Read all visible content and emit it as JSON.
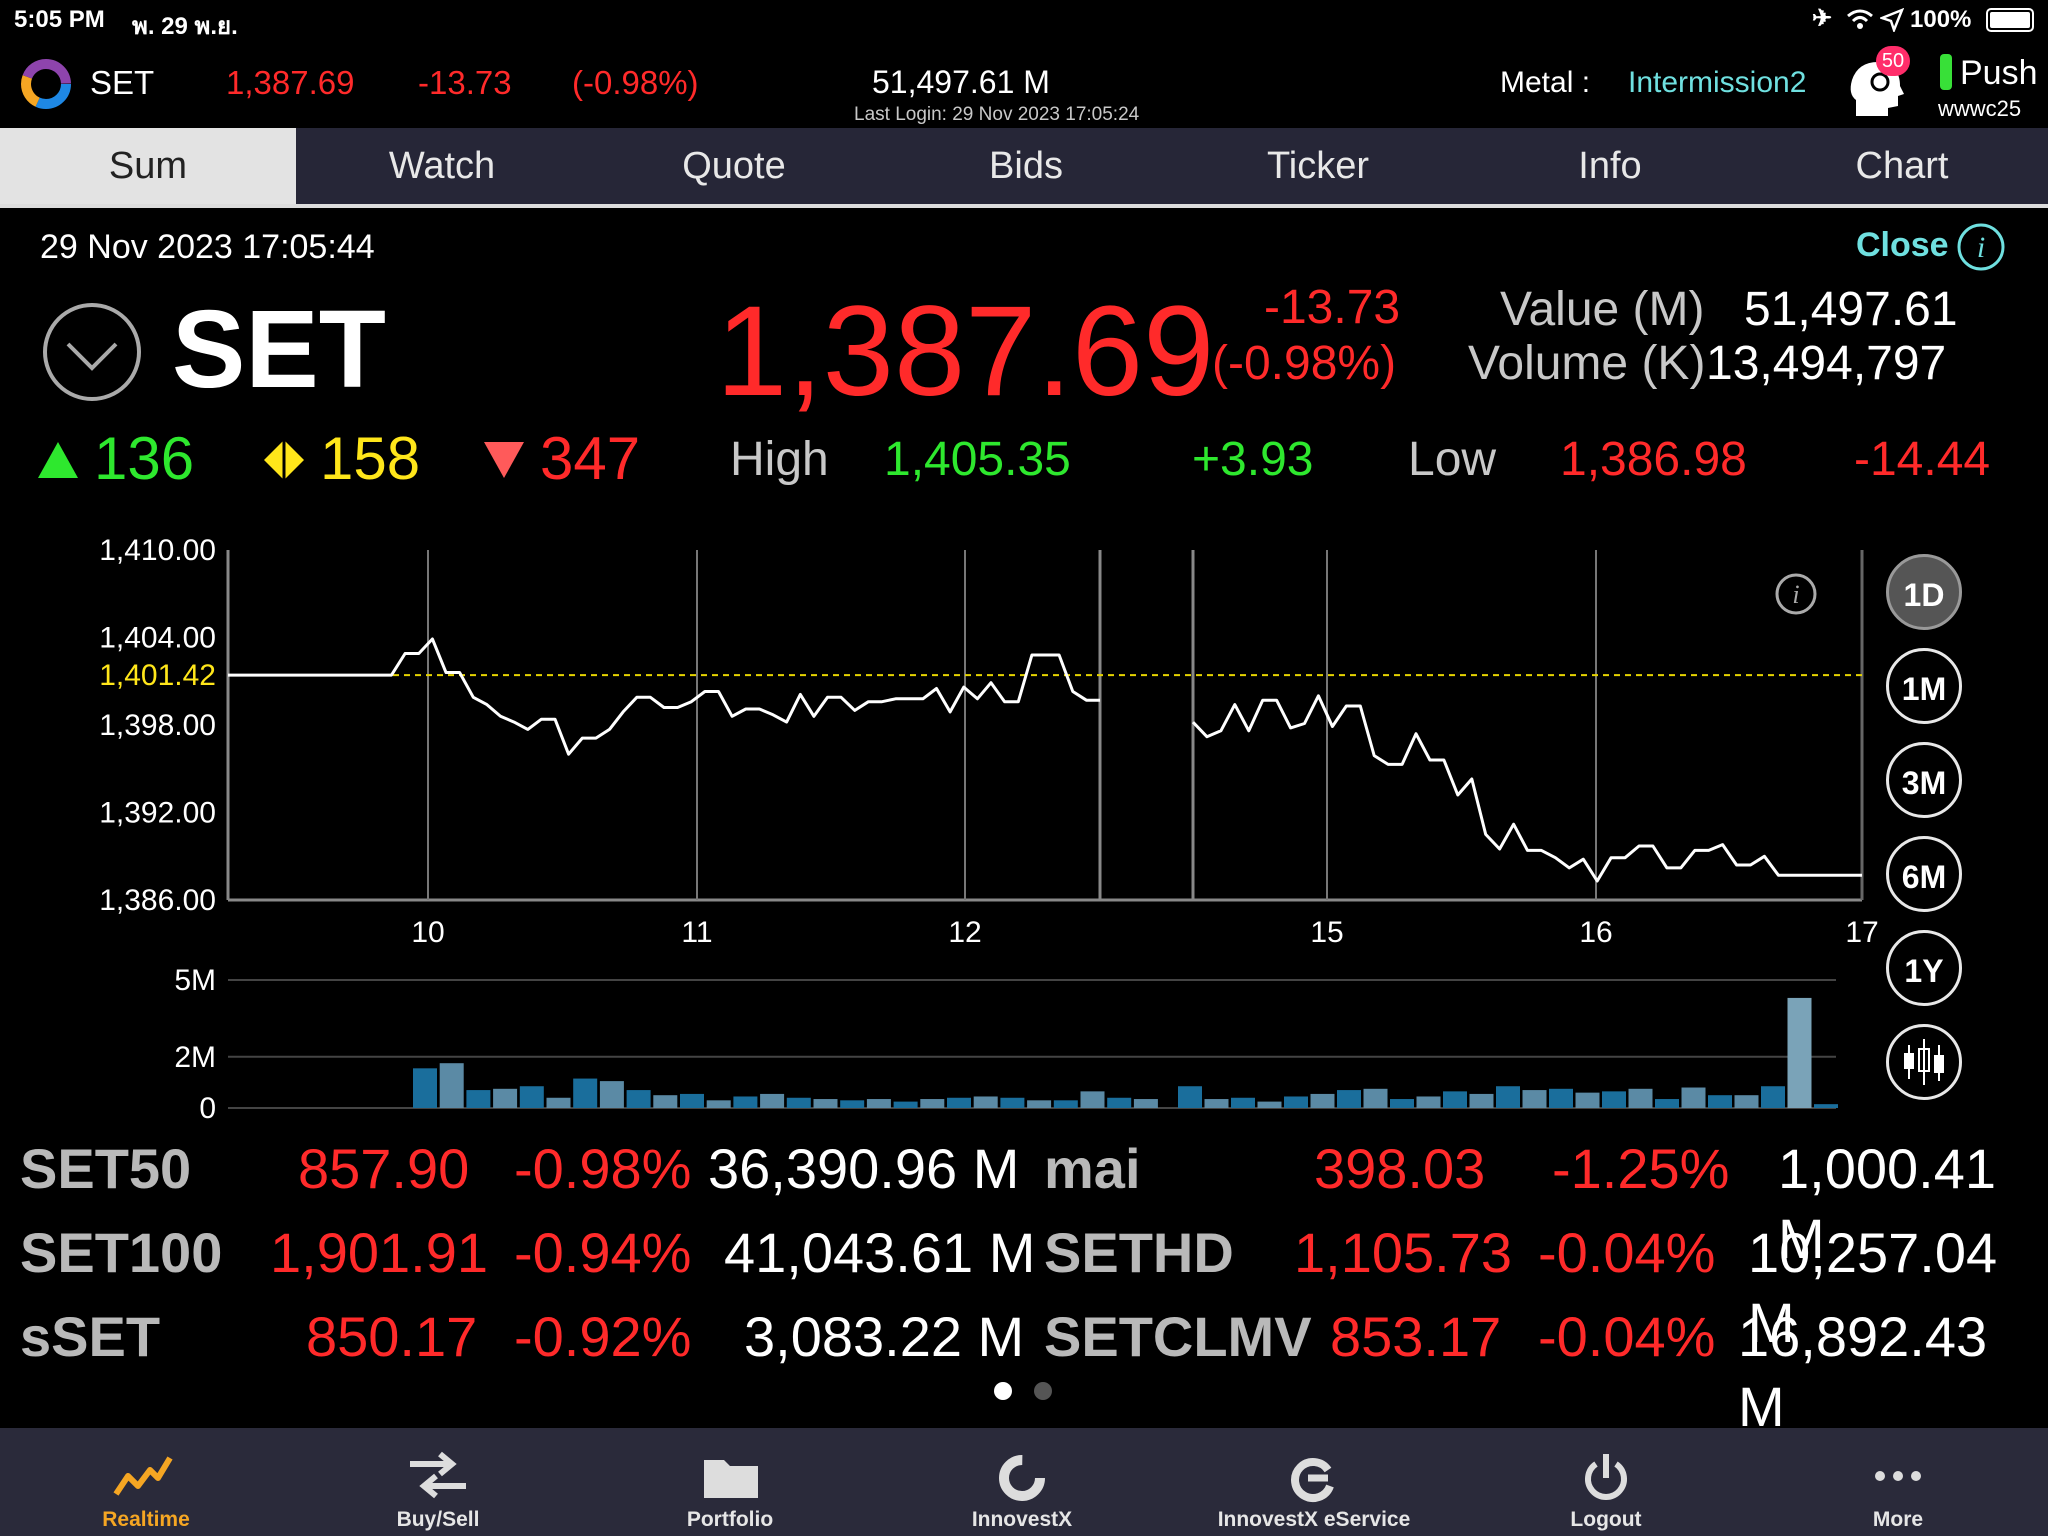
{
  "status_bar": {
    "time": "5:05 PM",
    "date": "พ. 29 พ.ย.",
    "battery": "100%"
  },
  "header": {
    "symbol": "SET",
    "price": "1,387.69",
    "change": "-13.73",
    "pct": "(-0.98%)",
    "value": "51,497.61 M",
    "last_login": "Last Login: 29 Nov 2023 17:05:24",
    "metal_label": "Metal :",
    "metal_value": "Intermission2",
    "notif_count": "50",
    "push_label": "Push",
    "user": "wwwc25"
  },
  "tabs": [
    "Sum",
    "Watch",
    "Quote",
    "Bids",
    "Ticker",
    "Info",
    "Chart"
  ],
  "summary": {
    "datetime": "29 Nov 2023 17:05:44",
    "close_label": "Close",
    "symbol": "SET",
    "price": "1,387.69",
    "change": "-13.73",
    "pct": "(-0.98%)",
    "value_label": "Value (M)",
    "value": "51,497.61",
    "volume_label": "Volume (K)",
    "volume": "13,494,797",
    "up": "136",
    "unchanged": "158",
    "down": "347",
    "high_label": "High",
    "high": "1,405.35",
    "high_change": "+3.93",
    "low_label": "Low",
    "low": "1,386.98",
    "low_change": "-14.44"
  },
  "range_buttons": [
    "1D",
    "1M",
    "3M",
    "6M",
    "1Y"
  ],
  "chart_data": {
    "type": "line",
    "ylim": [
      1386,
      1410
    ],
    "yticks": [
      "1,410.00",
      "1,404.00",
      "1,398.00",
      "1,392.00",
      "1,386.00"
    ],
    "prev_close": "1,401.42",
    "xticks": [
      "10",
      "11",
      "12",
      "15",
      "16",
      "17"
    ],
    "morning": [
      1401.42,
      1401.42,
      1401.42,
      1401.42,
      1401.42,
      1401.42,
      1401.42,
      1401.42,
      1401.42,
      1401.42,
      1401.42,
      1401.42,
      1401.42,
      1402.9,
      1402.9,
      1403.9,
      1401.6,
      1401.6,
      1399.9,
      1399.4,
      1398.6,
      1398.2,
      1397.7,
      1398.4,
      1398.4,
      1396.0,
      1397.1,
      1397.1,
      1397.7,
      1398.9,
      1399.9,
      1399.9,
      1399.2,
      1399.2,
      1399.6,
      1400.3,
      1400.3,
      1398.6,
      1399.1,
      1399.1,
      1398.7,
      1398.2,
      1400.1,
      1398.6,
      1399.9,
      1399.9,
      1399.0,
      1399.6,
      1399.6,
      1399.8,
      1399.8,
      1399.8,
      1400.5,
      1398.9,
      1400.6,
      1399.8,
      1400.9,
      1399.6,
      1399.6,
      1402.8,
      1402.8,
      1402.8,
      1400.3,
      1399.7,
      1399.7
    ],
    "afternoon": [
      1398.2,
      1397.2,
      1397.6,
      1399.4,
      1397.6,
      1399.7,
      1399.7,
      1397.8,
      1398.1,
      1400.0,
      1397.9,
      1399.3,
      1399.3,
      1395.9,
      1395.3,
      1395.3,
      1397.4,
      1395.6,
      1395.6,
      1393.2,
      1394.3,
      1390.5,
      1389.5,
      1391.2,
      1389.4,
      1389.4,
      1388.9,
      1388.2,
      1388.8,
      1387.3,
      1388.9,
      1388.9,
      1389.7,
      1389.7,
      1388.2,
      1388.2,
      1389.4,
      1389.4,
      1389.8,
      1388.4,
      1388.4,
      1389.0,
      1387.7,
      1387.7,
      1387.7,
      1387.7,
      1387.7,
      1387.7,
      1387.7
    ],
    "volume_ticks": [
      "5M",
      "2M",
      "0"
    ],
    "volume_morning": [
      1.55,
      1.75,
      0.7,
      0.75,
      0.85,
      0.4,
      1.15,
      1.05,
      0.7,
      0.5,
      0.55,
      0.3,
      0.45,
      0.55,
      0.4,
      0.35,
      0.3,
      0.35,
      0.25,
      0.35,
      0.4,
      0.45,
      0.4,
      0.3,
      0.3,
      0.65,
      0.4,
      0.35
    ],
    "volume_afternoon": [
      0.85,
      0.35,
      0.4,
      0.25,
      0.45,
      0.55,
      0.7,
      0.75,
      0.35,
      0.45,
      0.65,
      0.55,
      0.85,
      0.7,
      0.75,
      0.6,
      0.65,
      0.75,
      0.35,
      0.8,
      0.5,
      0.5,
      0.85,
      4.3,
      0.15
    ]
  },
  "indices": [
    {
      "name": "SET50",
      "value": "857.90",
      "pct": "-0.98%",
      "val": "36,390.96 M"
    },
    {
      "name": "SET100",
      "value": "1,901.91",
      "pct": "-0.94%",
      "val": "41,043.61 M"
    },
    {
      "name": "sSET",
      "value": "850.17",
      "pct": "-0.92%",
      "val": "3,083.22 M"
    },
    {
      "name": "mai",
      "value": "398.03",
      "pct": "-1.25%",
      "val": "1,000.41 M"
    },
    {
      "name": "SETHD",
      "value": "1,105.73",
      "pct": "-0.04%",
      "val": "10,257.04 M"
    },
    {
      "name": "SETCLMV",
      "value": "853.17",
      "pct": "-0.04%",
      "val": "16,892.43 M"
    }
  ],
  "bottom_nav": [
    "Realtime",
    "Buy/Sell",
    "Portfolio",
    "InnovestX",
    "InnovestX eService",
    "Logout",
    "More"
  ],
  "colors": {
    "up": "#2ee82e",
    "down": "#ff2a2a",
    "unchanged": "#ffe61a",
    "accent": "#6fe0e0",
    "active_nav": "#f5a623"
  }
}
